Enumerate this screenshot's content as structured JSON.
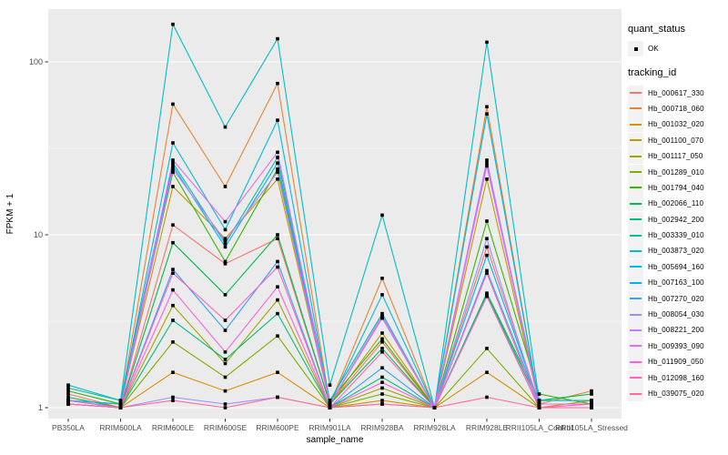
{
  "figure": {
    "background": "#FFFFFF",
    "panel_background": "#EBEBEB",
    "grid_color": "#FFFFFF",
    "axis_text_color": "#4D4D4D",
    "tick_mark_color": "#333333",
    "title_text_color": "#000000",
    "legend_key_background": "#F2F2F2",
    "point_color": "#000000"
  },
  "legend": {
    "quant_status": {
      "title": "quant_status",
      "items": [
        {
          "label": "OK",
          "symbol": "point"
        }
      ]
    },
    "tracking_id": {
      "title": "tracking_id"
    }
  },
  "chart_data": {
    "type": "line",
    "title": "",
    "xlabel": "sample_name",
    "ylabel": "FPKM + 1",
    "y_scale": "log10",
    "y_ticks": [
      1,
      10,
      100
    ],
    "y_tick_labels": [
      "1",
      "10",
      "100"
    ],
    "y_minor_gridlines": [
      3.1623,
      31.623
    ],
    "ylim": [
      0.89,
      205
    ],
    "grid": true,
    "legend_position": "right",
    "categories": [
      "PB350LA",
      "RRIM600LA",
      "RRIM600LE",
      "RRIM600SE",
      "RRIM600PE",
      "RRIM901LA",
      "RRIM928BA",
      "RRIM928LA",
      "RRIM928LE",
      "RRII105LA_Control",
      "RRII105LA_Stressed"
    ],
    "series": [
      {
        "name": "Hb_000617_330",
        "color": "#F8766D",
        "values": [
          1.2,
          1.0,
          11.4,
          6.8,
          9.5,
          1.05,
          2.4,
          1.0,
          8.5,
          1.05,
          1.05
        ]
      },
      {
        "name": "Hb_000718_060",
        "color": "#EA8331",
        "values": [
          1.1,
          1.05,
          57,
          19,
          75,
          1.05,
          5.6,
          1.0,
          55,
          1.05,
          1.25
        ]
      },
      {
        "name": "Hb_001032_020",
        "color": "#D89000",
        "values": [
          1.05,
          1.0,
          1.6,
          1.25,
          1.6,
          1.0,
          1.1,
          1.0,
          1.6,
          1.0,
          1.1
        ]
      },
      {
        "name": "Hb_001100_070",
        "color": "#C09B00",
        "values": [
          1.1,
          1.05,
          19,
          9.5,
          21,
          1.05,
          2.7,
          1.0,
          21,
          1.05,
          1.05
        ]
      },
      {
        "name": "Hb_001117_050",
        "color": "#A3A500",
        "values": [
          1.05,
          1.0,
          3.9,
          1.8,
          4.2,
          1.0,
          1.3,
          1.0,
          4.4,
          1.0,
          1.0
        ]
      },
      {
        "name": "Hb_001289_010",
        "color": "#7CAE00",
        "values": [
          1.1,
          1.0,
          2.4,
          1.5,
          2.6,
          1.0,
          1.2,
          1.0,
          2.2,
          1.0,
          1.0
        ]
      },
      {
        "name": "Hb_001794_040",
        "color": "#39B600",
        "values": [
          1.25,
          1.05,
          23,
          7.0,
          24,
          1.1,
          2.5,
          1.0,
          12,
          1.2,
          1.05
        ]
      },
      {
        "name": "Hb_002066_110",
        "color": "#00BB4E",
        "values": [
          1.15,
          1.0,
          9.0,
          4.5,
          10,
          1.05,
          2.2,
          1.0,
          4.6,
          1.1,
          1.2
        ]
      },
      {
        "name": "Hb_002942_200",
        "color": "#00BF7D",
        "values": [
          1.1,
          1.0,
          3.2,
          1.9,
          3.5,
          1.0,
          1.5,
          1.0,
          4.5,
          1.05,
          1.05
        ]
      },
      {
        "name": "Hb_003339_010",
        "color": "#00C1A3",
        "values": [
          1.3,
          1.1,
          26,
          8.9,
          28,
          1.1,
          3.5,
          1.0,
          26,
          1.1,
          1.1
        ]
      },
      {
        "name": "Hb_003873_020",
        "color": "#00BFC4",
        "values": [
          1.35,
          1.1,
          165,
          42,
          136,
          1.35,
          13,
          1.0,
          130,
          1.1,
          1.1
        ]
      },
      {
        "name": "Hb_005694_160",
        "color": "#00BAE0",
        "values": [
          1.1,
          1.05,
          34,
          10.7,
          46,
          1.05,
          4.5,
          1.0,
          50,
          1.05,
          1.05
        ]
      },
      {
        "name": "Hb_007163_100",
        "color": "#00B0F6",
        "values": [
          1.1,
          1.0,
          25,
          8.5,
          26,
          1.05,
          3.3,
          1.0,
          7.6,
          1.05,
          1.05
        ]
      },
      {
        "name": "Hb_007270_020",
        "color": "#35A2FF",
        "values": [
          1.05,
          1.0,
          6.3,
          2.8,
          7.0,
          1.0,
          1.7,
          1.0,
          6.2,
          1.05,
          1.05
        ]
      },
      {
        "name": "Hb_008054_030",
        "color": "#9590FF",
        "values": [
          1.05,
          1.0,
          1.15,
          1.05,
          1.15,
          1.0,
          1.05,
          1.0,
          9.5,
          1.0,
          1.0
        ]
      },
      {
        "name": "Hb_008221_200",
        "color": "#C77CFF",
        "values": [
          1.1,
          1.0,
          24,
          9.2,
          23,
          1.05,
          3.4,
          1.0,
          27,
          1.05,
          1.05
        ]
      },
      {
        "name": "Hb_009393_090",
        "color": "#E76BF3",
        "values": [
          1.1,
          1.0,
          27,
          11.9,
          30,
          1.05,
          3.3,
          1.0,
          25,
          1.05,
          1.05
        ]
      },
      {
        "name": "Hb_011909_050",
        "color": "#FA62DB",
        "values": [
          1.05,
          1.0,
          4.8,
          2.1,
          5.0,
          1.0,
          1.4,
          1.0,
          4.4,
          1.0,
          1.0
        ]
      },
      {
        "name": "Hb_012098_160",
        "color": "#FF62BC",
        "values": [
          1.05,
          1.0,
          6.0,
          3.2,
          6.5,
          1.0,
          2.1,
          1.0,
          6.0,
          1.0,
          1.05
        ]
      },
      {
        "name": "Hb_039075_020",
        "color": "#FF6A98",
        "values": [
          1.05,
          1.0,
          1.1,
          1.0,
          1.15,
          1.0,
          1.05,
          1.0,
          1.15,
          1.0,
          1.0
        ]
      }
    ]
  }
}
